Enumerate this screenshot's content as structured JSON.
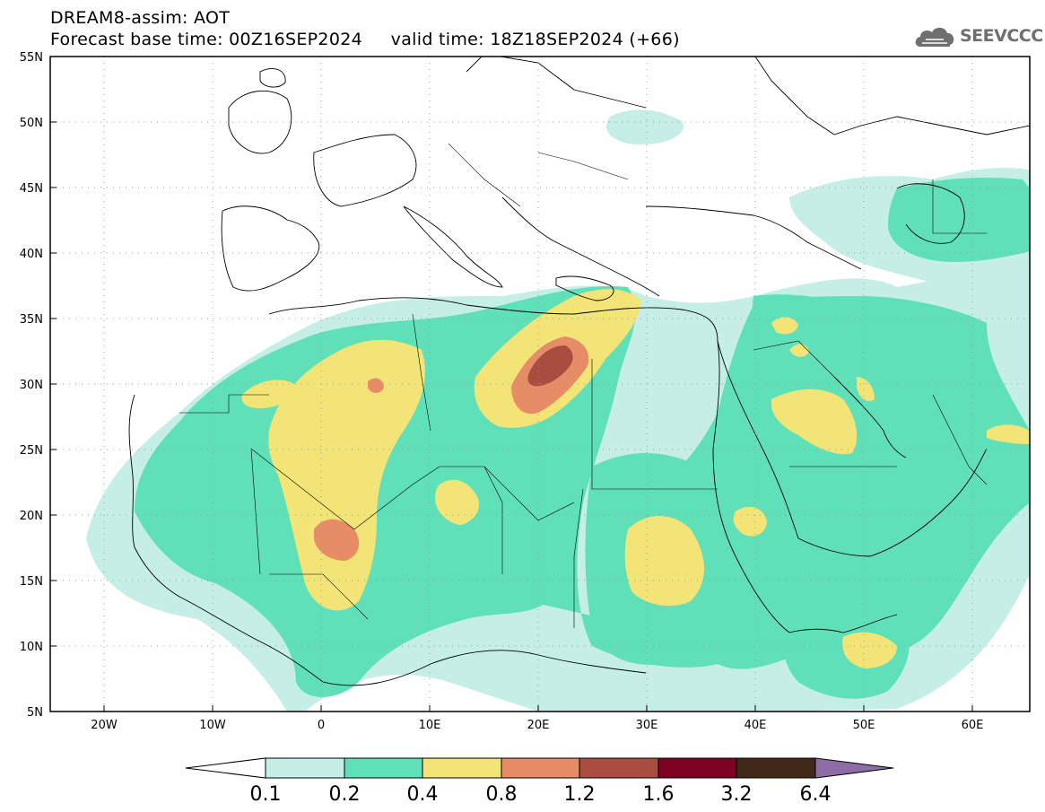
{
  "header": {
    "line1": "DREAM8-assim: AOT",
    "line2": "Forecast base time: 00Z16SEP2024     valid time: 18Z18SEP2024 (+66)"
  },
  "logo": {
    "text": "SEEVCCC",
    "icon": "cloud-icon"
  },
  "map": {
    "lon_range": [
      -25,
      65
    ],
    "lat_range": [
      5,
      55
    ],
    "grid": "dotted",
    "lat_ticks": [
      "5N",
      "10N",
      "15N",
      "20N",
      "25N",
      "30N",
      "35N",
      "40N",
      "45N",
      "50N",
      "55N"
    ],
    "lon_ticks": [
      "20W",
      "10W",
      "0",
      "10E",
      "20E",
      "30E",
      "40E",
      "50E",
      "60E"
    ]
  },
  "colorbar": {
    "labels": [
      "0.1",
      "0.2",
      "0.4",
      "0.8",
      "1.2",
      "1.6",
      "3.2",
      "6.4"
    ],
    "colors": [
      "#ffffff",
      "#c4eee6",
      "#5fe0b8",
      "#f2e477",
      "#e68d67",
      "#a84d3f",
      "#7d0324",
      "#3f2818",
      "#8e6ca5"
    ]
  },
  "colors": {
    "aot_01_02": "#c4eee6",
    "aot_02_04": "#5fe0b8",
    "aot_04_08": "#f2e477",
    "aot_08_12": "#e68d67",
    "aot_12_16": "#a84d3f"
  }
}
